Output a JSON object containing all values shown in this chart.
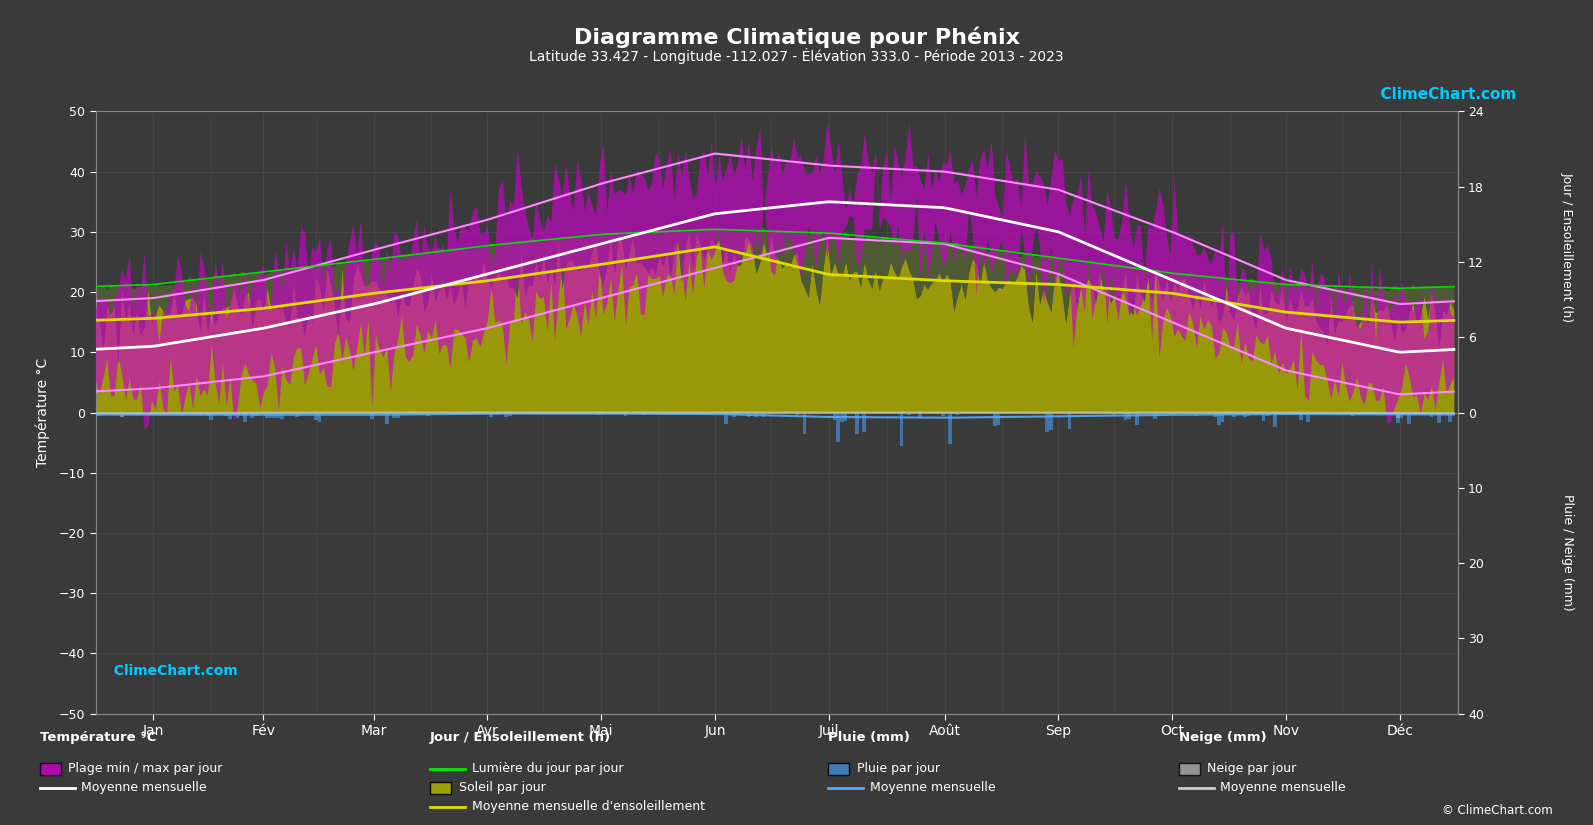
{
  "title": "Diagramme Climatique pour Phénix",
  "subtitle": "Latitude 33.427 - Longitude -112.027 - Élévation 333.0 - Période 2013 - 2023",
  "background_color": "#3a3a3a",
  "plot_bg_color": "#3a3a3a",
  "text_color": "#ffffff",
  "grid_color": "#555555",
  "months": [
    "Jan",
    "Fév",
    "Mar",
    "Avr",
    "Mai",
    "Jun",
    "Juil",
    "Août",
    "Sep",
    "Oct",
    "Nov",
    "Déc"
  ],
  "temp_ylim": [
    -50,
    50
  ],
  "temp_yticks": [
    -50,
    -40,
    -30,
    -20,
    -10,
    0,
    10,
    20,
    30,
    40,
    50
  ],
  "days_per_month": [
    31,
    28,
    31,
    30,
    31,
    30,
    31,
    31,
    30,
    31,
    30,
    31
  ],
  "temp_min_monthly": [
    4,
    6,
    10,
    14,
    19,
    24,
    29,
    28,
    23,
    15,
    7,
    3
  ],
  "temp_max_monthly": [
    19,
    22,
    27,
    32,
    38,
    43,
    41,
    40,
    37,
    30,
    22,
    18
  ],
  "temp_mean_monthly": [
    11,
    14,
    18,
    23,
    28,
    33,
    35,
    34,
    30,
    22,
    14,
    10
  ],
  "daylight_monthly": [
    10.2,
    11.2,
    12.2,
    13.3,
    14.2,
    14.6,
    14.3,
    13.5,
    12.3,
    11.1,
    10.2,
    9.9
  ],
  "sunshine_monthly": [
    7.5,
    8.3,
    9.5,
    10.5,
    11.8,
    13.2,
    11.0,
    10.5,
    10.2,
    9.5,
    8.0,
    7.2
  ],
  "sunshine_mean_monthly": [
    7.5,
    8.3,
    9.5,
    10.5,
    11.8,
    13.2,
    11.0,
    10.5,
    10.2,
    9.5,
    8.0,
    7.2
  ],
  "rain_daily_mm": [
    0.7,
    0.8,
    0.9,
    0.4,
    0.3,
    0.4,
    1.6,
    1.9,
    1.3,
    0.7,
    0.5,
    0.7
  ],
  "rain_mean_mm": [
    0.3,
    0.3,
    0.3,
    0.15,
    0.15,
    0.2,
    0.6,
    0.7,
    0.5,
    0.3,
    0.2,
    0.25
  ],
  "snow_daily_mm": [
    0.3,
    0.1,
    0.0,
    0.0,
    0.0,
    0.0,
    0.0,
    0.0,
    0.0,
    0.0,
    0.05,
    0.2
  ],
  "snow_mean_mm": [
    0.1,
    0.03,
    0.0,
    0.0,
    0.0,
    0.0,
    0.0,
    0.0,
    0.0,
    0.0,
    0.02,
    0.08
  ],
  "sun_scale_max": 24,
  "rain_scale_max": 40,
  "logo_text": "ClimeChart.com",
  "copyright_text": "© ClimeChart.com",
  "logo_color": "#00ccff",
  "sun_fill_color": "#aaaa00",
  "daylight_fill_color": "#556633",
  "temp_fill_color": "#cc00cc",
  "temp_mean_line_color": "#ffffff",
  "temp_minmax_line_color": "#ff88ff",
  "daylight_line_color": "#00ee00",
  "sunshine_mean_line_color": "#dddd00",
  "rain_bar_color": "#4488cc",
  "rain_mean_line_color": "#55aaff",
  "snow_bar_color": "#aaaaaa",
  "snow_mean_line_color": "#cccccc"
}
